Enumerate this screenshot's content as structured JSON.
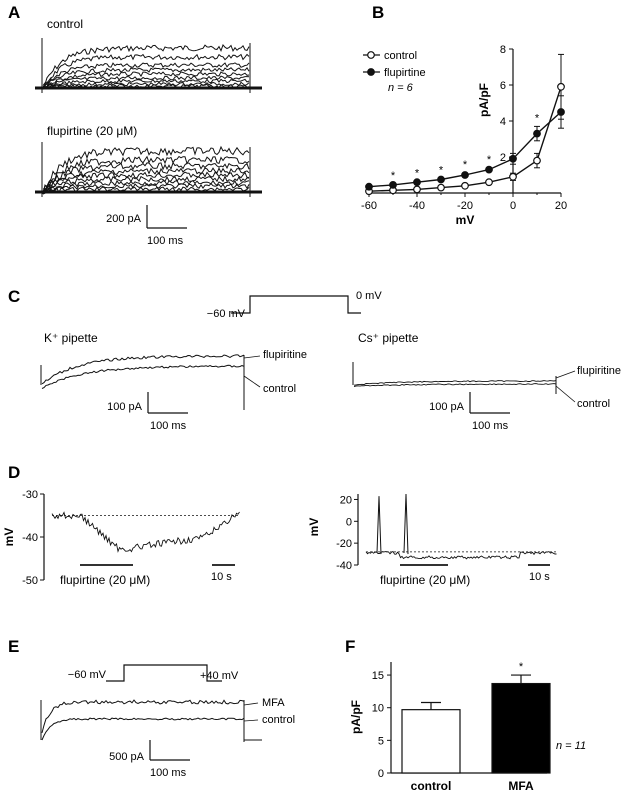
{
  "panels": {
    "A": {
      "letter": "A",
      "top_label": "control",
      "bottom_label": "flupirtine (20 μM)",
      "scale_y": "200 pA",
      "scale_x": "100 ms"
    },
    "C": {
      "letter": "C",
      "protocol_start": "−60 mV",
      "protocol_end": "0 mV",
      "left_title": "K⁺ pipette",
      "right_title": "Cs⁺ pipette",
      "left_trace_flu": "flupiritine",
      "left_trace_ctl": "control",
      "right_trace_flu": "flupiritine",
      "right_trace_ctl": "control",
      "left_scale_y": "100 pA",
      "left_scale_x": "100 ms",
      "right_scale_y": "100 pA",
      "right_scale_x": "100 ms"
    },
    "D": {
      "letter": "D",
      "ylabel": "mV",
      "left_drug": "flupirtine (20 μM)",
      "left_time": "10 s",
      "right_drug": "flupirtine (20 μM)",
      "right_time": "10 s"
    },
    "E": {
      "letter": "E",
      "protocol_start": "−60 mV",
      "protocol_end": "+40 mV",
      "trace_mfa": "MFA",
      "trace_ctl": "control",
      "scale_y": "500 pA",
      "scale_x": "100 ms"
    }
  },
  "chart_data": [
    {
      "panel": "B",
      "type": "line",
      "xlabel": "mV",
      "ylabel": "pA/pF",
      "x": [
        -60,
        -50,
        -40,
        -30,
        -20,
        -10,
        0,
        10,
        20
      ],
      "xticks": [
        -60,
        -40,
        -20,
        0,
        20
      ],
      "yticks": [
        2,
        4,
        6,
        8
      ],
      "xlim": [
        -60,
        20
      ],
      "ylim": [
        0,
        8
      ],
      "series": [
        {
          "name": "control",
          "marker": "open-circle",
          "values": [
            0.1,
            0.15,
            0.2,
            0.3,
            0.4,
            0.6,
            0.9,
            1.8,
            5.9
          ],
          "errors": [
            0.05,
            0.05,
            0.05,
            0.05,
            0.05,
            0.1,
            0.2,
            0.4,
            1.8
          ]
        },
        {
          "name": "flupirtine",
          "marker": "filled-circle",
          "values": [
            0.35,
            0.45,
            0.6,
            0.75,
            1.0,
            1.3,
            1.9,
            3.3,
            4.5
          ],
          "errors": [
            0.05,
            0.05,
            0.05,
            0.05,
            0.1,
            0.1,
            0.3,
            0.4,
            0.9
          ]
        }
      ],
      "significance_x": [
        -50,
        -40,
        -30,
        -20,
        -10,
        10
      ],
      "significance_mark": "*",
      "annotation": "n = 6"
    },
    {
      "panel": "D-left",
      "type": "line",
      "ylabel": "mV",
      "yticks": [
        -30,
        -40,
        -50
      ],
      "ylim": [
        -50,
        -30
      ],
      "baseline": -35
    },
    {
      "panel": "D-right",
      "type": "line",
      "ylabel": "mV",
      "yticks": [
        20,
        0,
        -20,
        -40
      ],
      "ylim": [
        -40,
        25
      ],
      "baseline": -28
    },
    {
      "panel": "F",
      "type": "bar",
      "ylabel": "pA/pF",
      "categories": [
        "control",
        "MFA"
      ],
      "values": [
        9.7,
        13.7
      ],
      "errors": [
        1.1,
        1.3
      ],
      "colors": [
        "#ffffff",
        "#000000"
      ],
      "yticks": [
        0,
        5,
        10,
        15
      ],
      "ylim": [
        0,
        17
      ],
      "significance": [
        null,
        "*"
      ],
      "annotation": "n = 11"
    }
  ]
}
